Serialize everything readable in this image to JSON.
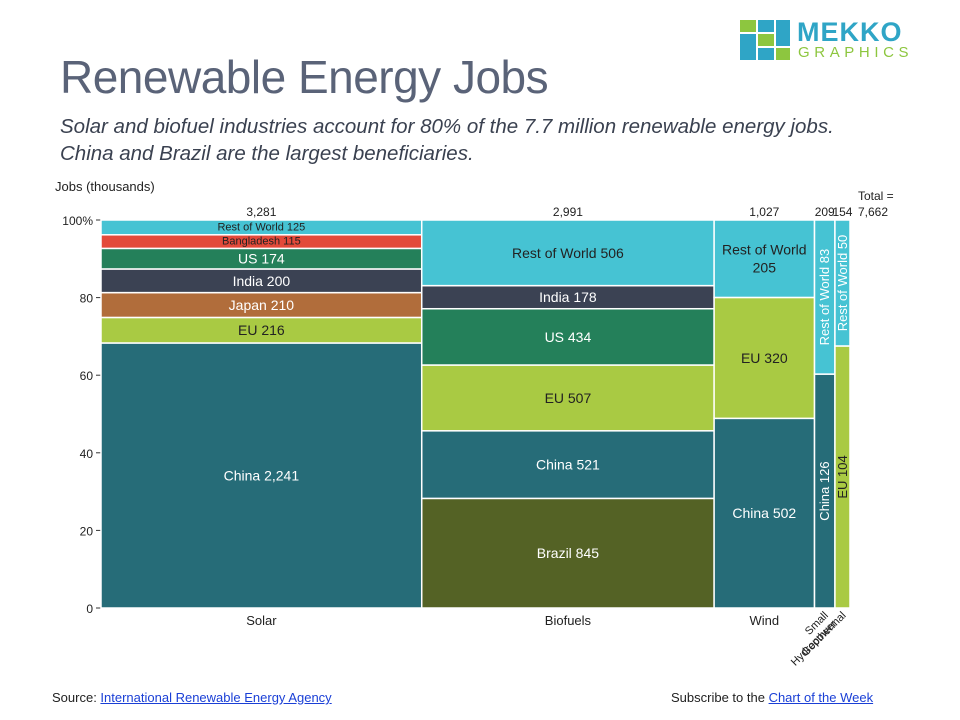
{
  "title": "Renewable Energy Jobs",
  "subtitle": "Solar and biofuel industries account for 80% of the 7.7 million renewable energy jobs.  China and Brazil are the largest beneficiaries.",
  "logo": {
    "word1": "MEKKO",
    "word2": "GRAPHICS"
  },
  "footer": {
    "source_label": "Source: ",
    "source_link": "International Renewable Energy Agency",
    "subscribe_label": "Subscribe to the ",
    "subscribe_link": "Chart of the Week"
  },
  "colors": {
    "China": "#266c78",
    "Brazil": "#546225",
    "EU": "#a9ca43",
    "US": "#24805a",
    "India": "#3b4253",
    "Japan": "#b16d3b",
    "Bangladesh": "#e34a3a",
    "Rest of World": "#46c3d3"
  },
  "chart_data": {
    "type": "mekko",
    "ylabel": "Jobs (thousands)",
    "ylim": [
      0,
      100
    ],
    "y_ticks": [
      "0",
      "20",
      "40",
      "60",
      "80",
      "100%"
    ],
    "total_label": "Total =",
    "total_value": "7,662",
    "columns": [
      {
        "name": "Solar",
        "total": 3281,
        "total_label": "3,281",
        "segments": [
          {
            "key": "China",
            "value": 2241,
            "label": "China 2,241"
          },
          {
            "key": "EU",
            "value": 216,
            "label": "EU 216"
          },
          {
            "key": "Japan",
            "value": 210,
            "label": "Japan 210"
          },
          {
            "key": "India",
            "value": 200,
            "label": "India 200"
          },
          {
            "key": "US",
            "value": 174,
            "label": "US 174"
          },
          {
            "key": "Bangladesh",
            "value": 115,
            "label": "Bangladesh 115"
          },
          {
            "key": "Rest of World",
            "value": 125,
            "label": "Rest of World 125"
          }
        ]
      },
      {
        "name": "Biofuels",
        "total": 2991,
        "total_label": "2,991",
        "segments": [
          {
            "key": "Brazil",
            "value": 845,
            "label": "Brazil 845"
          },
          {
            "key": "China",
            "value": 521,
            "label": "China 521"
          },
          {
            "key": "EU",
            "value": 507,
            "label": "EU 507"
          },
          {
            "key": "US",
            "value": 434,
            "label": "US 434"
          },
          {
            "key": "India",
            "value": 178,
            "label": "India 178"
          },
          {
            "key": "Rest of World",
            "value": 506,
            "label": "Rest of World 506"
          }
        ]
      },
      {
        "name": "Wind",
        "total": 1027,
        "total_label": "1,027",
        "segments": [
          {
            "key": "China",
            "value": 502,
            "label": "China 502"
          },
          {
            "key": "EU",
            "value": 320,
            "label": "EU 320"
          },
          {
            "key": "Rest of World",
            "value": 205,
            "label": "Rest of World 205"
          }
        ]
      },
      {
        "name": "Small Hydropower",
        "total": 209,
        "total_label": "209",
        "segments": [
          {
            "key": "China",
            "value": 126,
            "label": "China 126"
          },
          {
            "key": "Rest of World",
            "value": 83,
            "label": "Rest of World 83"
          }
        ]
      },
      {
        "name": "Geothermal",
        "total": 154,
        "total_label": "154",
        "segments": [
          {
            "key": "EU",
            "value": 104,
            "label": "EU 104"
          },
          {
            "key": "Rest of World",
            "value": 50,
            "label": "Rest of World 50"
          }
        ]
      }
    ]
  }
}
